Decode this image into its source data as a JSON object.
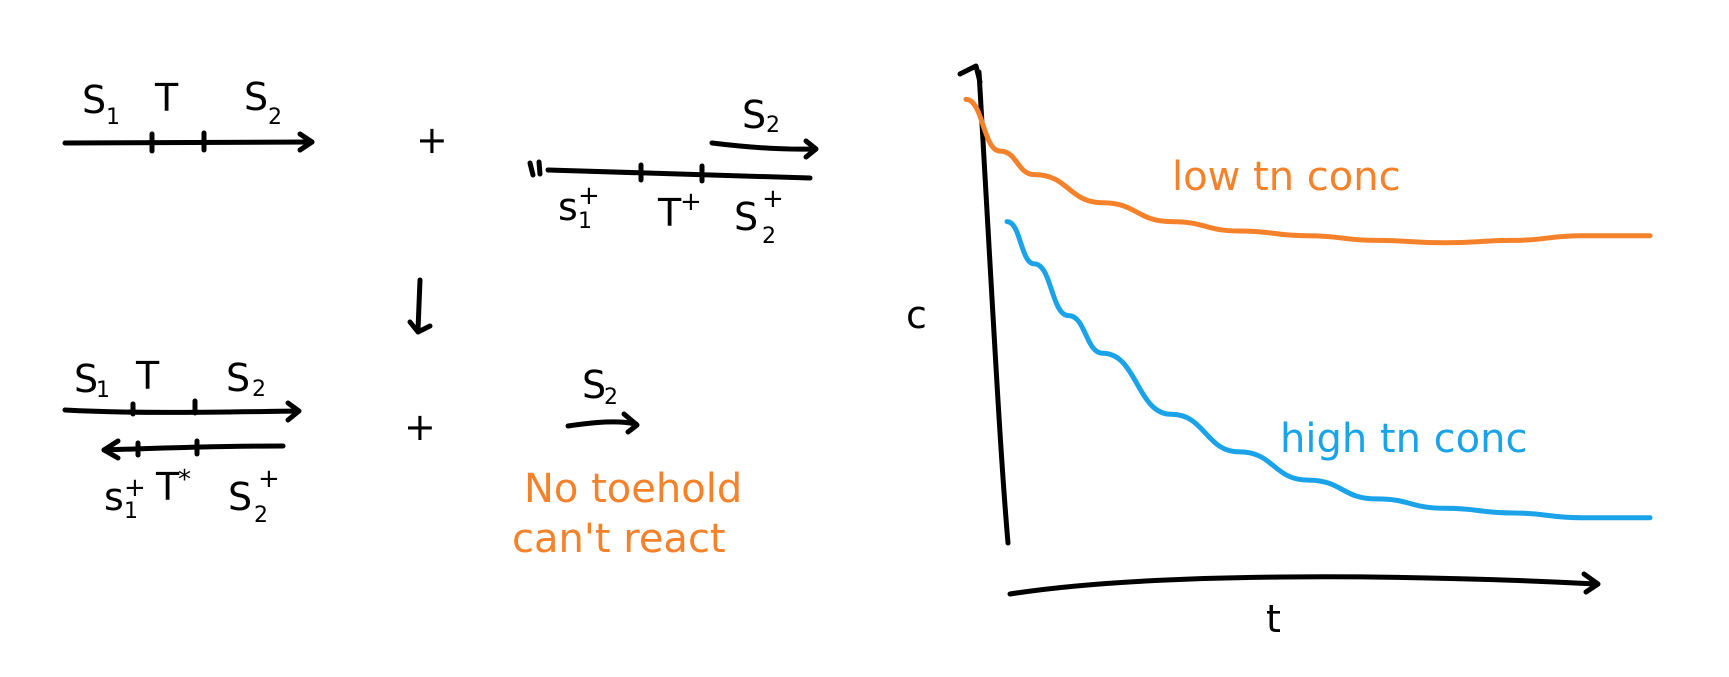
{
  "diagram": {
    "top_left": {
      "segments": [
        "S",
        "T",
        "S"
      ],
      "subs": [
        "1",
        "",
        "2"
      ]
    },
    "plus_top": "+",
    "top_right": {
      "upper_label": "S",
      "upper_sub": "2",
      "segments": [
        "s",
        "T",
        "S"
      ],
      "subs": [
        "1",
        "",
        "2"
      ],
      "sups": [
        "+",
        "+",
        "+"
      ]
    },
    "arrow_down": "↓",
    "bottom_left": {
      "top_segments": [
        "S",
        "T",
        "S"
      ],
      "top_subs": [
        "1",
        "",
        "2"
      ],
      "bottom_segments": [
        "s",
        "T",
        "S"
      ],
      "bottom_subs": [
        "1",
        "",
        "2"
      ],
      "bottom_sups": [
        "+",
        "*",
        "+"
      ]
    },
    "plus_bottom": "+",
    "bottom_right": {
      "label": "S",
      "sub": "2"
    },
    "note": {
      "line1": "No toehold",
      "line2": "can't react",
      "color": "#f5822a"
    }
  },
  "chart_data": {
    "type": "line",
    "xlabel": "t",
    "ylabel": "c",
    "series": [
      {
        "name": "low tn conc",
        "color": "#f5822a",
        "x": [
          0,
          0.05,
          0.1,
          0.2,
          0.3,
          0.4,
          0.5,
          0.6,
          0.7,
          0.8,
          0.9,
          1.0
        ],
        "y": [
          0.98,
          0.87,
          0.82,
          0.76,
          0.72,
          0.7,
          0.69,
          0.68,
          0.675,
          0.68,
          0.69,
          0.69
        ]
      },
      {
        "name": "high tn conc",
        "color": "#1aa3e8",
        "x": [
          0.06,
          0.1,
          0.15,
          0.2,
          0.3,
          0.4,
          0.5,
          0.6,
          0.7,
          0.8,
          0.9,
          1.0
        ],
        "y": [
          0.72,
          0.63,
          0.52,
          0.44,
          0.31,
          0.23,
          0.17,
          0.13,
          0.11,
          0.1,
          0.09,
          0.09
        ]
      }
    ],
    "annotations": [
      "low tn conc",
      "high tn conc"
    ]
  }
}
